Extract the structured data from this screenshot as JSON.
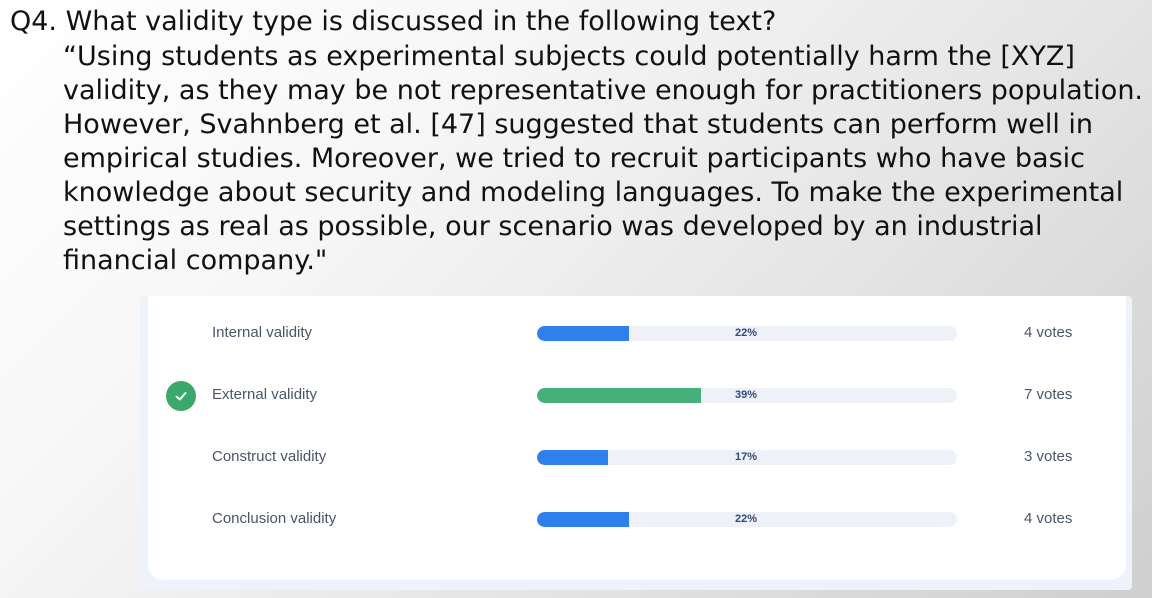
{
  "question": {
    "title": "Q4. What validity type is discussed in the following text?",
    "body": "“Using students as experimental subjects could potentially harm the [XYZ] validity, as they may be not representative enough for practitioners population. However, Svahnberg et al. [47] suggested that students can perform well in empirical studies. Moreover, we tried to recruit participants who have basic knowledge about security and modeling languages. To make the experimental settings as real as possible, our scenario was developed by an industrial financial company.\""
  },
  "poll": {
    "options": [
      {
        "label": "Internal validity",
        "percent_text": "22%",
        "fraction": 0.22,
        "votes": "4 votes",
        "correct": false
      },
      {
        "label": "External validity",
        "percent_text": "39%",
        "fraction": 0.39,
        "votes": "7 votes",
        "correct": true
      },
      {
        "label": "Construct validity",
        "percent_text": "17%",
        "fraction": 0.17,
        "votes": "3 votes",
        "correct": false
      },
      {
        "label": "Conclusion validity",
        "percent_text": "22%",
        "fraction": 0.22,
        "votes": "4 votes",
        "correct": false
      }
    ],
    "colors": {
      "bar_default": "#2f80ed",
      "bar_correct": "#45b07a",
      "check": "#3aa86b"
    },
    "icons": {
      "correct": "check-circle-icon"
    }
  }
}
